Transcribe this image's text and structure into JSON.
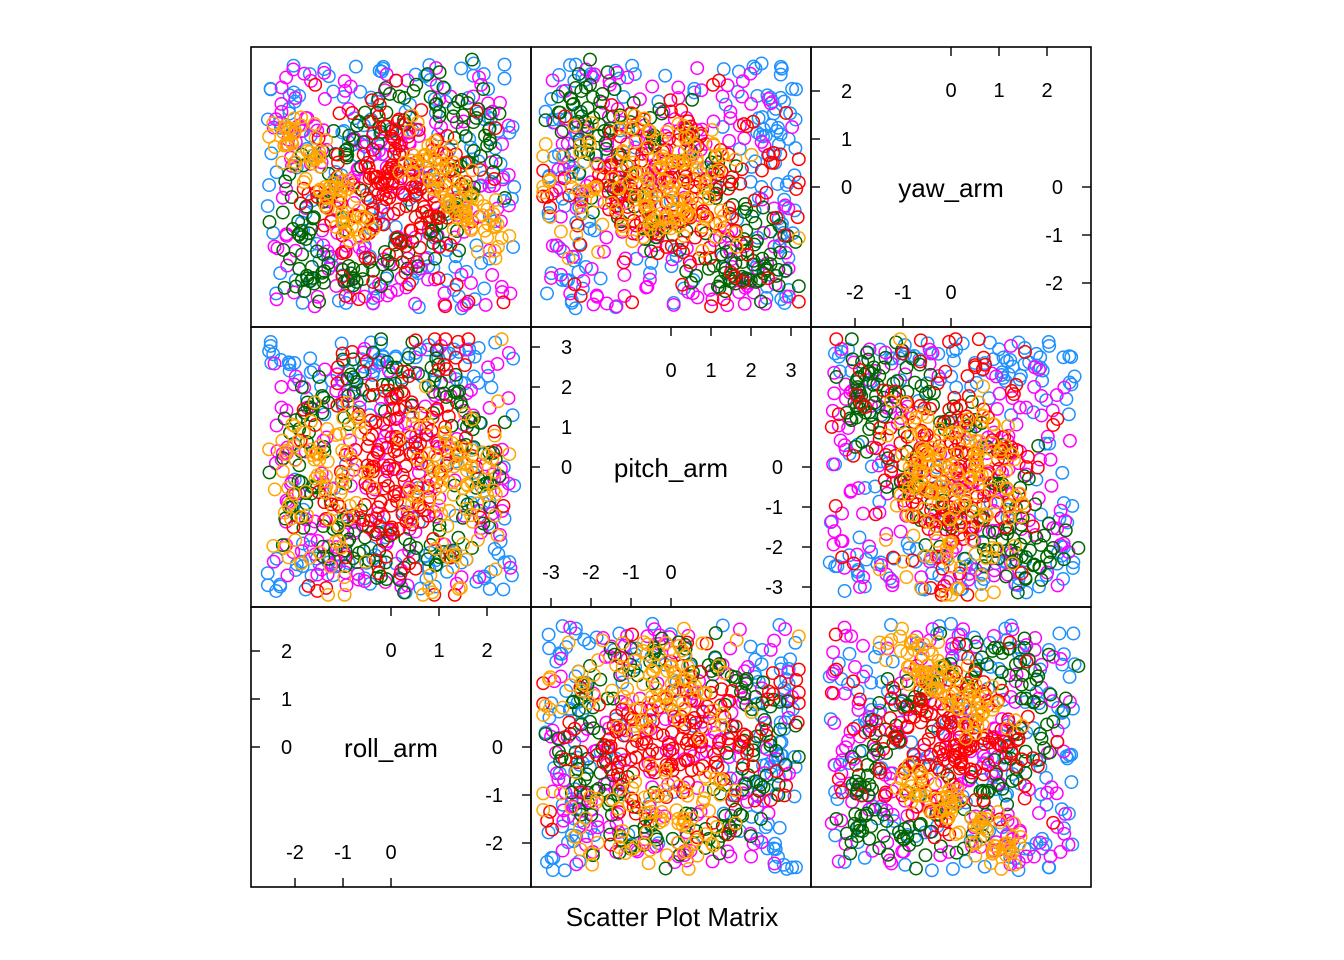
{
  "chart_data": {
    "type": "scatter",
    "subtype": "scatter-plot-matrix",
    "title": "",
    "xlabel": "Scatter Plot Matrix",
    "ylabel": "",
    "variables": [
      {
        "name": "roll_arm",
        "range": [
          -2.5,
          2.5
        ],
        "ticks_low": [
          "-2",
          "-1",
          "0"
        ],
        "ticks_high": [
          "0",
          "1",
          "2"
        ],
        "ticks_y_low": [
          "-2",
          "-1",
          "0"
        ],
        "ticks_y_high": [
          "0",
          "1",
          "2"
        ]
      },
      {
        "name": "pitch_arm",
        "range": [
          -3,
          3
        ],
        "ticks_low": [
          "-3",
          "-2",
          "-1",
          "0"
        ],
        "ticks_high": [
          "0",
          "1",
          "2",
          "3"
        ],
        "ticks_y_low": [
          "-3",
          "-2",
          "-1",
          "0"
        ],
        "ticks_y_high": [
          "0",
          "1",
          "2",
          "3"
        ]
      },
      {
        "name": "yaw_arm",
        "range": [
          -2.5,
          2.5
        ],
        "ticks_low": [
          "-2",
          "-1",
          "0"
        ],
        "ticks_high": [
          "0",
          "1",
          "2"
        ],
        "ticks_y_low": [
          "-2",
          "-1",
          "0"
        ],
        "ticks_y_high": [
          "0",
          "1",
          "2"
        ]
      }
    ],
    "groups": [
      {
        "color": "#1E90FF"
      },
      {
        "color": "#FF00FF"
      },
      {
        "color": "#006400"
      },
      {
        "color": "#FF0000"
      },
      {
        "color": "#FFA500"
      }
    ],
    "marker": "open-circle",
    "grid": false,
    "legend": "none",
    "point_counts": {
      "per_group": 170
    },
    "note_points_estimated": true
  }
}
